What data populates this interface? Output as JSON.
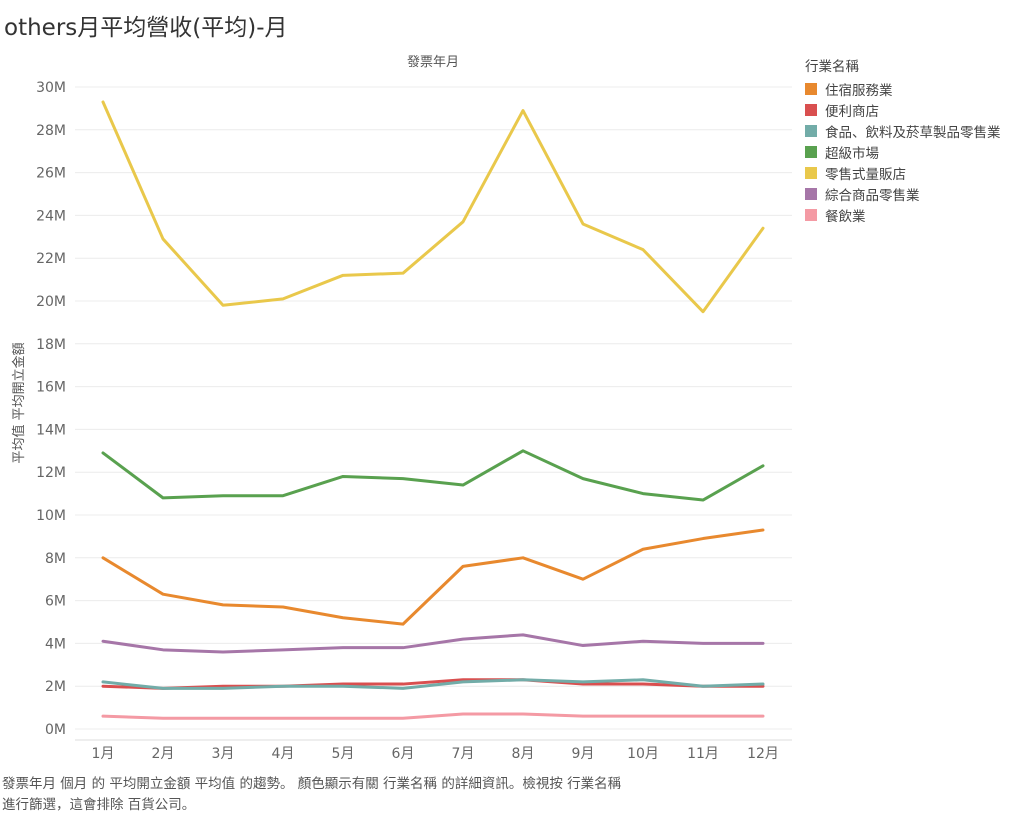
{
  "title": "others月平均營收(平均)-月",
  "caption": {
    "line1": "發票年月 個月 的 平均開立金額 平均值 的趨勢。 顏色顯示有關 行業名稱 的詳細資訊。檢視按 行業名稱",
    "line2": "進行篩選，這會排除 百貨公司。"
  },
  "legend": {
    "title": "行業名稱",
    "items": [
      {
        "label": "住宿服務業",
        "color": "#e8892e"
      },
      {
        "label": "便利商店",
        "color": "#d94f4f"
      },
      {
        "label": "食品、飲料及菸草製品零售業",
        "color": "#72aca8"
      },
      {
        "label": "超級市場",
        "color": "#59a14f"
      },
      {
        "label": "零售式量販店",
        "color": "#e9c84b"
      },
      {
        "label": "綜合商品零售業",
        "color": "#a676a8"
      },
      {
        "label": "餐飲業",
        "color": "#f49aa4"
      }
    ]
  },
  "chart_data": {
    "type": "line",
    "title": "",
    "xlabel": "發票年月",
    "ylabel": "平均值 平均開立金額",
    "categories": [
      "1月",
      "2月",
      "3月",
      "4月",
      "5月",
      "6月",
      "7月",
      "8月",
      "9月",
      "10月",
      "11月",
      "12月"
    ],
    "yticks": [
      "0M",
      "2M",
      "4M",
      "6M",
      "8M",
      "10M",
      "12M",
      "14M",
      "16M",
      "18M",
      "20M",
      "22M",
      "24M",
      "26M",
      "28M",
      "30M"
    ],
    "ylim": [
      0,
      30000000
    ],
    "grid": true,
    "legend_position": "right",
    "series": [
      {
        "name": "住宿服務業",
        "color": "#e8892e",
        "values": [
          8000000,
          6300000,
          5800000,
          5700000,
          5200000,
          4900000,
          7600000,
          8000000,
          7000000,
          8400000,
          8900000,
          9300000
        ]
      },
      {
        "name": "便利商店",
        "color": "#d94f4f",
        "values": [
          2000000,
          1900000,
          2000000,
          2000000,
          2100000,
          2100000,
          2300000,
          2300000,
          2100000,
          2100000,
          2000000,
          2000000
        ]
      },
      {
        "name": "食品、飲料及菸草製品零售業",
        "color": "#72aca8",
        "values": [
          2200000,
          1900000,
          1900000,
          2000000,
          2000000,
          1900000,
          2200000,
          2300000,
          2200000,
          2300000,
          2000000,
          2100000
        ]
      },
      {
        "name": "超級市場",
        "color": "#59a14f",
        "values": [
          12900000,
          10800000,
          10900000,
          10900000,
          11800000,
          11700000,
          11400000,
          13000000,
          11700000,
          11000000,
          10700000,
          12300000
        ]
      },
      {
        "name": "零售式量販店",
        "color": "#e9c84b",
        "values": [
          29300000,
          22900000,
          19800000,
          20100000,
          21200000,
          21300000,
          23700000,
          28900000,
          23600000,
          22400000,
          19500000,
          23400000
        ]
      },
      {
        "name": "綜合商品零售業",
        "color": "#a676a8",
        "values": [
          4100000,
          3700000,
          3600000,
          3700000,
          3800000,
          3800000,
          4200000,
          4400000,
          3900000,
          4100000,
          4000000,
          4000000
        ]
      },
      {
        "name": "餐飲業",
        "color": "#f49aa4",
        "values": [
          600000,
          500000,
          500000,
          500000,
          500000,
          500000,
          700000,
          700000,
          600000,
          600000,
          600000,
          600000
        ]
      }
    ]
  }
}
